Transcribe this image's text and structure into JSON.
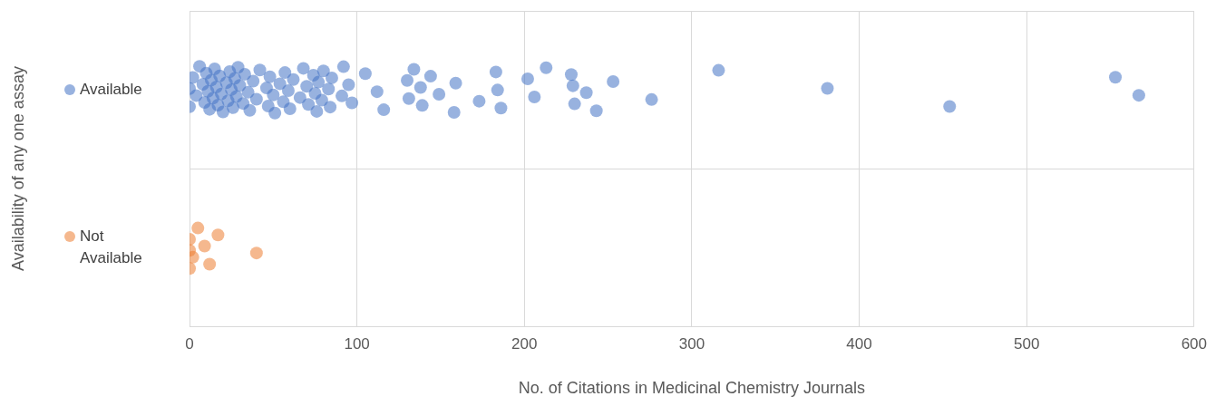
{
  "chart_data": {
    "type": "scatter",
    "orientation": "horizontal",
    "xlabel": "No. of Citations in Medicinal Chemistry Journals",
    "ylabel": "Availability of any one assay",
    "categories": [
      "Available",
      "Not Available"
    ],
    "xlim": [
      0,
      600
    ],
    "xticks": [
      0,
      100,
      200,
      300,
      400,
      500,
      600
    ],
    "grid": true,
    "legend": false,
    "marker": "circle",
    "series": [
      {
        "color": "#4472c4",
        "x": [
          "Available",
          "Available",
          "Available",
          "Available",
          "Available",
          "Available",
          "Available",
          "Available",
          "Available",
          "Available",
          "Available",
          "Available",
          "Available",
          "Available",
          "Available",
          "Available",
          "Available",
          "Available",
          "Available",
          "Available",
          "Available",
          "Available",
          "Available",
          "Available",
          "Available",
          "Available",
          "Available",
          "Available",
          "Available",
          "Available",
          "Available",
          "Available",
          "Available",
          "Available",
          "Available",
          "Available",
          "Available",
          "Available",
          "Available",
          "Available",
          "Available",
          "Available",
          "Available",
          "Available",
          "Available",
          "Available",
          "Available",
          "Available",
          "Available",
          "Available",
          "Available",
          "Available",
          "Available",
          "Available",
          "Available",
          "Available",
          "Available",
          "Available",
          "Available",
          "Available",
          "Available",
          "Available",
          "Available",
          "Available",
          "Available",
          "Available",
          "Available",
          "Available",
          "Available",
          "Available",
          "Available",
          "Available",
          "Available",
          "Available",
          "Available",
          "Available",
          "Available",
          "Available",
          "Available",
          "Available",
          "Available",
          "Available",
          "Available",
          "Available",
          "Available",
          "Available",
          "Available",
          "Available",
          "Available",
          "Available",
          "Available",
          "Available",
          "Available"
        ],
        "values": [
          567,
          553,
          454,
          381,
          316,
          276,
          253,
          243,
          237,
          228,
          230,
          229,
          213,
          206,
          202,
          186,
          184,
          183,
          173,
          159,
          158,
          149,
          144,
          139,
          138,
          134,
          131,
          130,
          116,
          112,
          105,
          97,
          95,
          92,
          91,
          85,
          84,
          83,
          80,
          79,
          77,
          76,
          75,
          74,
          71,
          70,
          68,
          66,
          62,
          60,
          59,
          57,
          56,
          54,
          51,
          50,
          48,
          47,
          46,
          42,
          40,
          38,
          36,
          35,
          33,
          32,
          30,
          29,
          28,
          27,
          26,
          25,
          24,
          23,
          22,
          20,
          19,
          18,
          17,
          16,
          15,
          14,
          13,
          12,
          11,
          10,
          9,
          8,
          6,
          4,
          2,
          0,
          0
        ]
      },
      {
        "color": "#ed7d31",
        "x": [
          "Not Available",
          "Not Available",
          "Not Available",
          "Not Available",
          "Not Available",
          "Not Available",
          "Not Available",
          "Not Available",
          "Not Available"
        ],
        "values": [
          40,
          17,
          12,
          9,
          5,
          2,
          0,
          0,
          0
        ]
      }
    ]
  }
}
